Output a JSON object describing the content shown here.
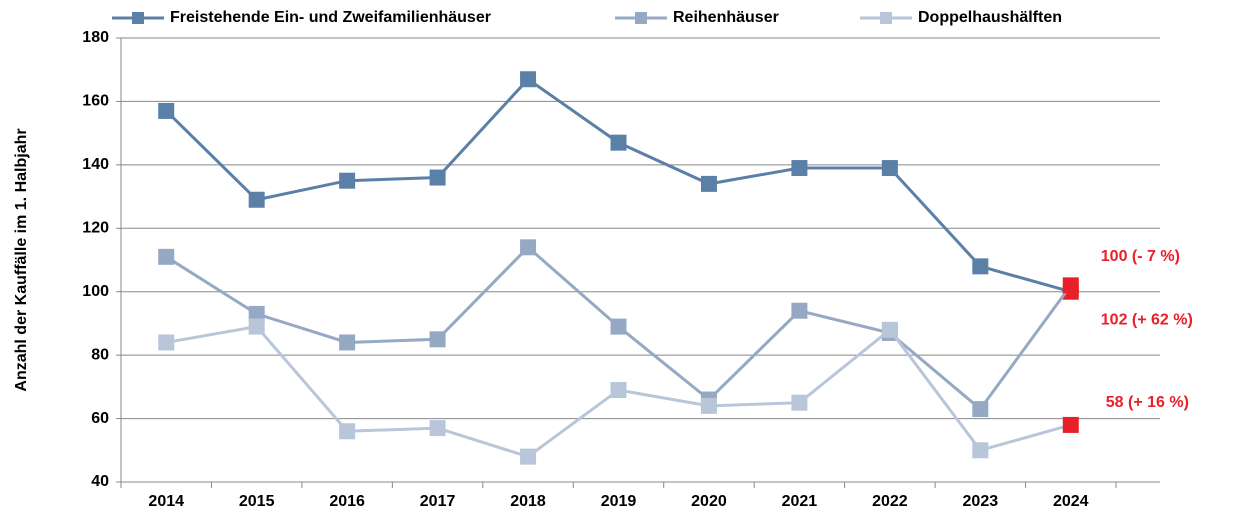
{
  "chart_data": {
    "type": "line",
    "y_axis_label": "Anzahl der Kauffälle im 1. Halbjahr",
    "categories": [
      "2014",
      "2015",
      "2016",
      "2017",
      "2018",
      "2019",
      "2020",
      "2021",
      "2022",
      "2023",
      "2024"
    ],
    "series": [
      {
        "name": "Freistehende Ein- und Zweifamilienhäuser",
        "color": "#5b80a8",
        "values": [
          157,
          129,
          135,
          136,
          167,
          147,
          134,
          139,
          139,
          108,
          100
        ],
        "annotation": "100 (- 7 %)"
      },
      {
        "name": "Reihenhäuser",
        "color": "#95a9c5",
        "values": [
          111,
          93,
          84,
          85,
          114,
          89,
          66,
          94,
          87,
          63,
          102
        ],
        "annotation": "102 (+ 62 %)"
      },
      {
        "name": "Doppelhaushälften",
        "color": "#b9c6da",
        "values": [
          84,
          89,
          56,
          57,
          48,
          69,
          64,
          65,
          88,
          50,
          58
        ],
        "annotation": "58 (+ 16 %)"
      }
    ],
    "highlight_color": "#e8202a",
    "ylim": [
      40,
      180
    ],
    "yticks": [
      40,
      60,
      80,
      100,
      120,
      140,
      160,
      180
    ],
    "grid": true,
    "legend": "top"
  }
}
